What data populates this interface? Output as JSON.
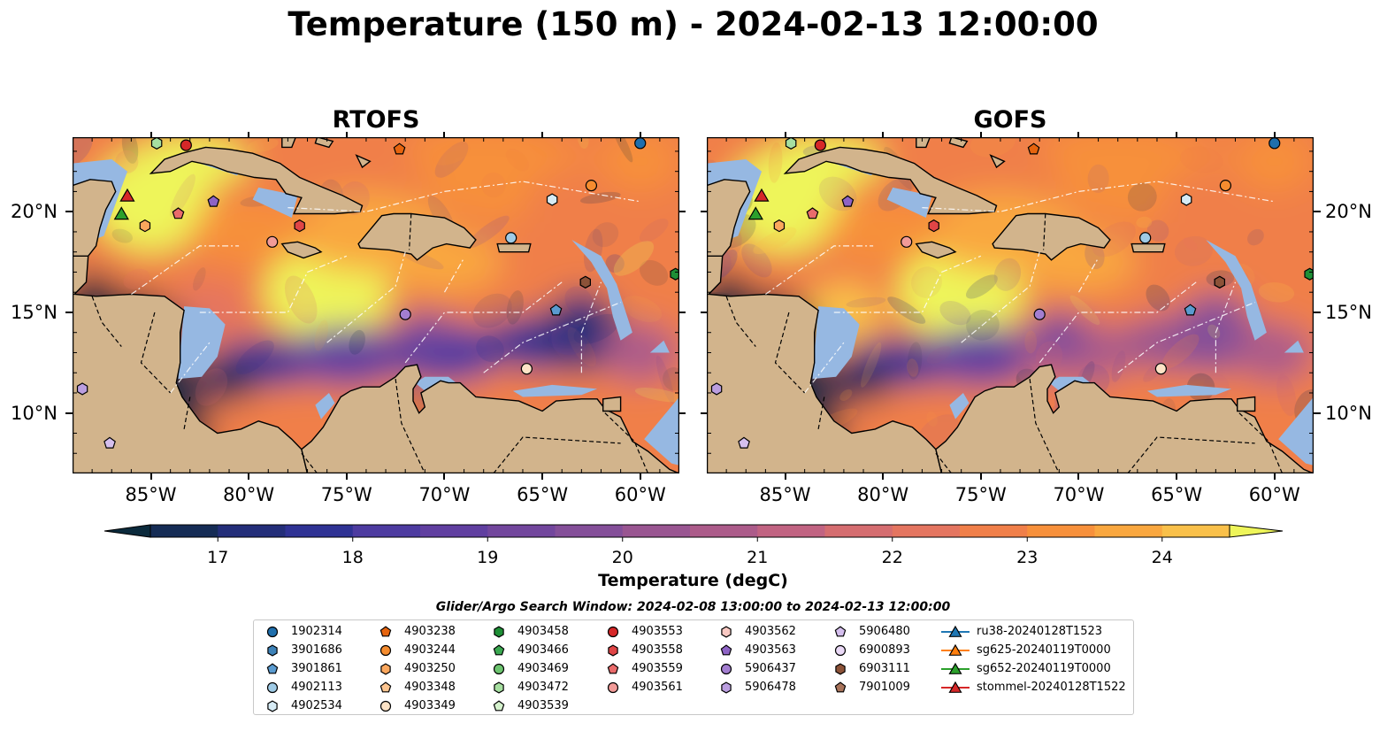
{
  "title": "Temperature (150 m) - 2024-02-13 12:00:00",
  "panels": [
    {
      "title": "RTOFS",
      "seed": 3,
      "cold_east": true
    },
    {
      "title": "GOFS",
      "seed": 11,
      "cold_east": false
    }
  ],
  "axes": {
    "lon_labels": [
      "85°W",
      "80°W",
      "75°W",
      "70°W",
      "65°W",
      "60°W"
    ],
    "lon_values": [
      -85,
      -80,
      -75,
      -70,
      -65,
      -60
    ],
    "lat_labels": [
      "20°N",
      "15°N",
      "10°N"
    ],
    "lat_values": [
      20,
      15,
      10
    ],
    "lon_range": [
      -89,
      -58
    ],
    "lat_range": [
      7,
      23.7
    ]
  },
  "colorbar": {
    "label": "Temperature (degC)",
    "ticks": [
      "17",
      "18",
      "19",
      "20",
      "21",
      "22",
      "23",
      "24"
    ],
    "range": [
      16.5,
      24.5
    ],
    "extend": "both",
    "colors": [
      "#0b2a3c",
      "#152c55",
      "#232e79",
      "#2f3294",
      "#4d3ba0",
      "#603fa0",
      "#72469d",
      "#844f99",
      "#995591",
      "#ac5b8a",
      "#c16382",
      "#d56d70",
      "#e47560",
      "#f07f49",
      "#f7903b",
      "#f9a73f",
      "#f9c04a",
      "#eef55a"
    ]
  },
  "map_colors": {
    "land": "#d2b48c",
    "shallow": "#96b8e2",
    "coast": "#000000"
  },
  "legend": {
    "title": "Glider/Argo Search Window: 2024-02-08 13:00:00 to 2024-02-13 12:00:00",
    "items": [
      {
        "label": "1902314",
        "marker": "circle",
        "color": "#1f6fad"
      },
      {
        "label": "3901686",
        "marker": "hexagon",
        "color": "#3d82b8"
      },
      {
        "label": "3901861",
        "marker": "pentagon",
        "color": "#5a9bd0"
      },
      {
        "label": "4902113",
        "marker": "circle",
        "color": "#9fcbe6"
      },
      {
        "label": "4902534",
        "marker": "hexagon",
        "color": "#d6ebf5"
      },
      {
        "label": "4903238",
        "marker": "pentagon",
        "color": "#e6640e"
      },
      {
        "label": "4903244",
        "marker": "circle",
        "color": "#f58c2f"
      },
      {
        "label": "4903250",
        "marker": "hexagon",
        "color": "#fba75d"
      },
      {
        "label": "4903348",
        "marker": "pentagon",
        "color": "#fdc590"
      },
      {
        "label": "4903349",
        "marker": "circle",
        "color": "#fde3c6"
      },
      {
        "label": "4903458",
        "marker": "hexagon",
        "color": "#1e8f36"
      },
      {
        "label": "4903466",
        "marker": "pentagon",
        "color": "#3aa850"
      },
      {
        "label": "4903469",
        "marker": "circle",
        "color": "#6cc46f"
      },
      {
        "label": "4903472",
        "marker": "hexagon",
        "color": "#a6dfa0"
      },
      {
        "label": "4903539",
        "marker": "pentagon",
        "color": "#d5f2cd"
      },
      {
        "label": "4903553",
        "marker": "circle",
        "color": "#d62728"
      },
      {
        "label": "4903558",
        "marker": "hexagon",
        "color": "#e04546"
      },
      {
        "label": "4903559",
        "marker": "pentagon",
        "color": "#ea6b6b"
      },
      {
        "label": "4903561",
        "marker": "circle",
        "color": "#f29b98"
      },
      {
        "label": "4903562",
        "marker": "hexagon",
        "color": "#f8c8c2"
      },
      {
        "label": "4903563",
        "marker": "pentagon",
        "color": "#8e63c5"
      },
      {
        "label": "5906437",
        "marker": "circle",
        "color": "#a37ed1"
      },
      {
        "label": "5906478",
        "marker": "hexagon",
        "color": "#bb9ee0"
      },
      {
        "label": "5906480",
        "marker": "pentagon",
        "color": "#d5bfee"
      },
      {
        "label": "6900893",
        "marker": "circle",
        "color": "#ead9f6"
      },
      {
        "label": "6903111",
        "marker": "hexagon",
        "color": "#8c5238"
      },
      {
        "label": "7901009",
        "marker": "pentagon",
        "color": "#a8735a"
      },
      {
        "label": "ru38-20240128T1523",
        "marker": "triangle",
        "color": "#1f77b4",
        "line": true
      },
      {
        "label": "sg625-20240119T0000",
        "marker": "triangle",
        "color": "#ff7f0e",
        "line": true
      },
      {
        "label": "sg652-20240119T0000",
        "marker": "triangle",
        "color": "#2ca02c",
        "line": true
      },
      {
        "label": "stommel-20240128T1522",
        "marker": "triangle",
        "color": "#d62728",
        "line": true
      }
    ]
  },
  "markers": [
    {
      "label": "1902314",
      "lon": -60.0,
      "lat": 23.4
    },
    {
      "label": "3901686",
      "lon": -62.8,
      "lat": 16.5
    },
    {
      "label": "3901861",
      "lon": -64.3,
      "lat": 15.1
    },
    {
      "label": "4902113",
      "lon": -66.6,
      "lat": 18.7
    },
    {
      "label": "4902534",
      "lon": -64.5,
      "lat": 20.6
    },
    {
      "label": "4903238",
      "lon": -72.3,
      "lat": 23.1
    },
    {
      "label": "4903244",
      "lon": -62.5,
      "lat": 21.3
    },
    {
      "label": "4903250",
      "lon": -85.3,
      "lat": 19.3
    },
    {
      "label": "4903349",
      "lon": -65.8,
      "lat": 12.2
    },
    {
      "label": "4903458",
      "lon": -58.2,
      "lat": 16.9
    },
    {
      "label": "4903472",
      "lon": -84.7,
      "lat": 23.4
    },
    {
      "label": "4903553",
      "lon": -83.2,
      "lat": 23.3
    },
    {
      "label": "4903558",
      "lon": -77.4,
      "lat": 19.3
    },
    {
      "label": "4903559",
      "lon": -83.6,
      "lat": 19.9
    },
    {
      "label": "4903561",
      "lon": -78.8,
      "lat": 18.5
    },
    {
      "label": "4903563",
      "lon": -81.8,
      "lat": 20.5
    },
    {
      "label": "5906437",
      "lon": -72.0,
      "lat": 14.9
    },
    {
      "label": "5906478",
      "lon": -88.5,
      "lat": 11.2
    },
    {
      "label": "5906480",
      "lon": -87.1,
      "lat": 8.5
    },
    {
      "label": "6903111",
      "lon": -62.8,
      "lat": 16.5
    },
    {
      "label": "sg652-20240119T0000",
      "lon": -86.5,
      "lat": 19.9
    },
    {
      "label": "stommel-20240128T1522",
      "lon": -86.2,
      "lat": 20.8
    }
  ]
}
